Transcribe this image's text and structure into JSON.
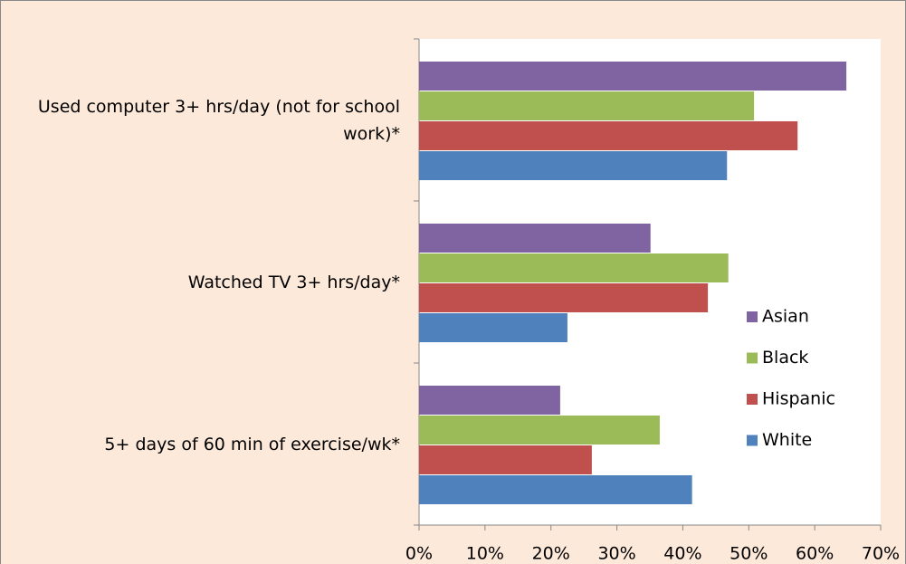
{
  "chart_data": {
    "type": "bar",
    "orientation": "horizontal",
    "categories": [
      "Used computer 3+ hrs/day (not for school work)*",
      "Watched TV 3+ hrs/day*",
      "5+ days of 60 min of exercise/wk*"
    ],
    "series": [
      {
        "name": "Asian",
        "color": "#8064a2",
        "values": [
          64.8,
          35.1,
          21.4
        ]
      },
      {
        "name": "Black",
        "color": "#9bbb59",
        "values": [
          50.8,
          46.9,
          36.5
        ]
      },
      {
        "name": "Hispanic",
        "color": "#c0504d",
        "values": [
          57.4,
          43.8,
          26.2
        ]
      },
      {
        "name": "White",
        "color": "#4f81bd",
        "values": [
          46.7,
          22.5,
          41.4
        ]
      }
    ],
    "xlim": [
      0,
      70
    ],
    "xticks": [
      {
        "value": 0,
        "label": "0%"
      },
      {
        "value": 10,
        "label": "10%"
      },
      {
        "value": 20,
        "label": "20%"
      },
      {
        "value": 30,
        "label": "30%"
      },
      {
        "value": 40,
        "label": "40%"
      },
      {
        "value": 50,
        "label": "50%"
      },
      {
        "value": 60,
        "label": "60%"
      },
      {
        "value": 70,
        "label": "70%"
      }
    ],
    "legend": "right"
  }
}
